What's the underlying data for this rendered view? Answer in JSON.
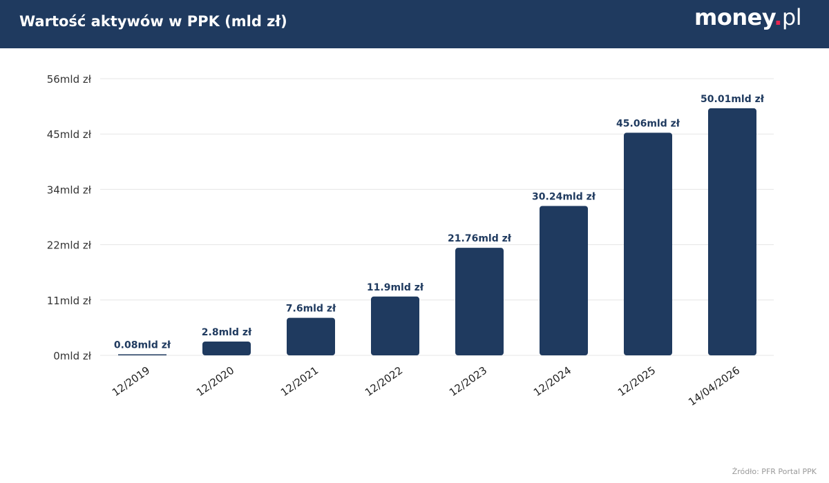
{
  "header": {
    "title": "Wartość aktywów w PPK (mld zł)",
    "logo_text": "money.pl"
  },
  "source": "Źródło: PFR Portal PPK",
  "colors": {
    "bar": "#1f3a5f",
    "header": "#1f3a5f",
    "grid": "#e5e5e5"
  },
  "chart_data": {
    "type": "bar",
    "title": "Wartość aktywów w PPK (mld zł)",
    "categories": [
      "12/2019",
      "12/2020",
      "12/2021",
      "12/2022",
      "12/2023",
      "12/2024",
      "12/2025",
      "14/04/2026"
    ],
    "values": [
      0.08,
      2.8,
      7.6,
      11.9,
      21.76,
      30.24,
      45.06,
      50.01
    ],
    "data_labels": [
      "0.08mld zł",
      "2.8mld zł",
      "7.6mld zł",
      "11.9mld zł",
      "21.76mld zł",
      "30.24mld zł",
      "45.06mld zł",
      "50.01mld zł"
    ],
    "yticks": [
      0,
      11.2,
      22.4,
      33.6,
      44.8,
      56
    ],
    "ytick_labels": [
      "0mld zł",
      "11mld zł",
      "22mld zł",
      "34mld zł",
      "45mld zł",
      "56mld zł"
    ],
    "ylim": [
      0,
      56
    ],
    "xlabel": "",
    "ylabel": "",
    "grid": true,
    "legend": "none"
  }
}
